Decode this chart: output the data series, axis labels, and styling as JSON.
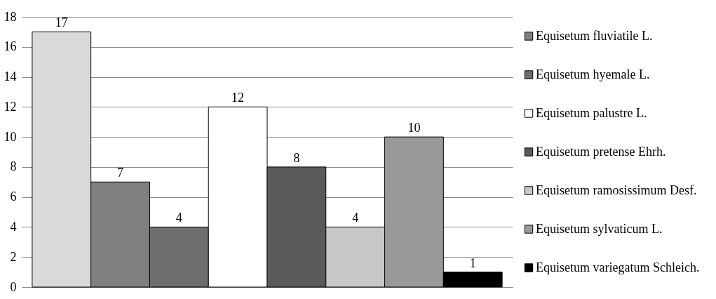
{
  "chart_data": {
    "type": "bar",
    "categories": [
      null
    ],
    "series": [
      {
        "color": "#d9d9d9",
        "values": [
          17
        ]
      },
      {
        "name": "Equisetum fluviatile L.",
        "color": "#808080",
        "values": [
          7
        ]
      },
      {
        "name": "Equisetum hyemale L.",
        "color": "#6e6e6e",
        "values": [
          4
        ]
      },
      {
        "name": "Equisetum palustre L.",
        "color": "#ffffff",
        "values": [
          12
        ]
      },
      {
        "name": "Equisetum pretense Ehrh.",
        "color": "#5a5a5a",
        "values": [
          8
        ]
      },
      {
        "name": "Equisetum ramosissimum Desf.",
        "color": "#c8c8c8",
        "values": [
          4
        ]
      },
      {
        "name": "Equisetum sylvaticum L.",
        "color": "#999999",
        "values": [
          10
        ]
      },
      {
        "name": "Equisetum variegatum Schleich.",
        "color": "#000000",
        "values": [
          1
        ]
      }
    ],
    "ylim": [
      0,
      18
    ],
    "yticks": [
      0,
      2,
      4,
      6,
      8,
      10,
      12,
      14,
      16,
      18
    ],
    "grid": "y",
    "legend": "right",
    "data_labels": true
  }
}
